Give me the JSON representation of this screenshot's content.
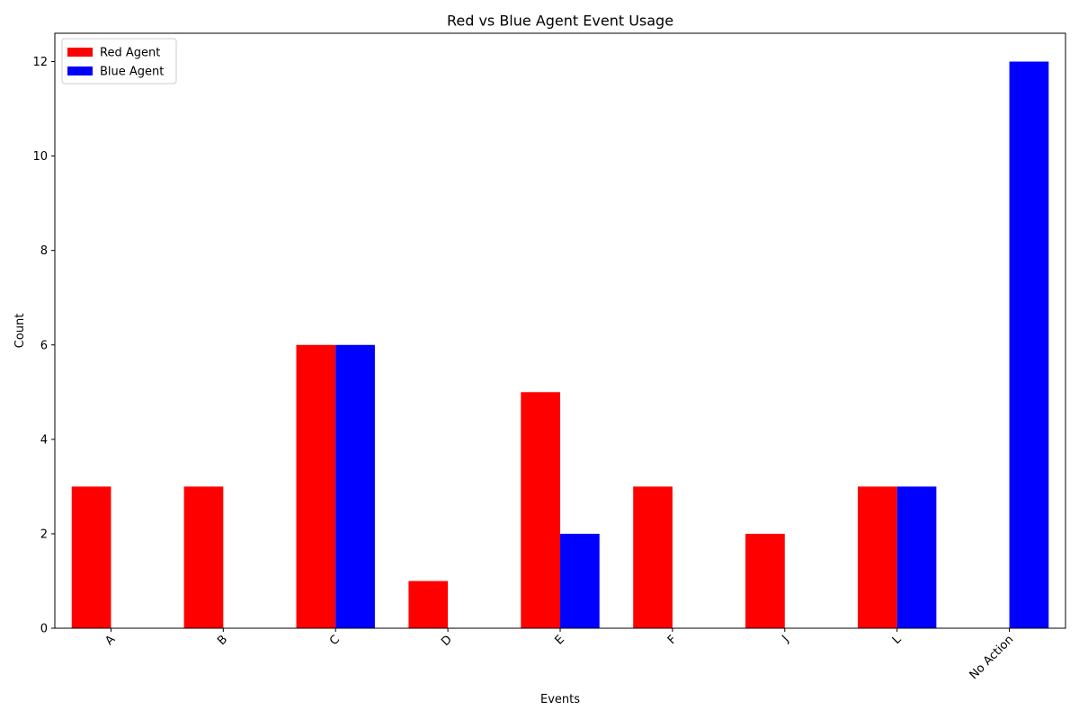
{
  "chart_data": {
    "type": "bar",
    "title": "Red vs Blue Agent Event Usage",
    "xlabel": "Events",
    "ylabel": "Count",
    "categories": [
      "A",
      "B",
      "C",
      "D",
      "E",
      "F",
      "J",
      "L",
      "No Action"
    ],
    "series": [
      {
        "name": "Red Agent",
        "color": "#ff0000",
        "values": [
          3,
          3,
          6,
          1,
          5,
          3,
          2,
          3,
          0
        ]
      },
      {
        "name": "Blue Agent",
        "color": "#0000ff",
        "values": [
          0,
          0,
          6,
          0,
          2,
          0,
          0,
          3,
          12
        ]
      }
    ],
    "ylim": [
      0,
      12.6
    ],
    "yticks": [
      0,
      2,
      4,
      6,
      8,
      10,
      12
    ],
    "grid": false,
    "legend_position": "top-left",
    "xtick_rotation": 45
  }
}
